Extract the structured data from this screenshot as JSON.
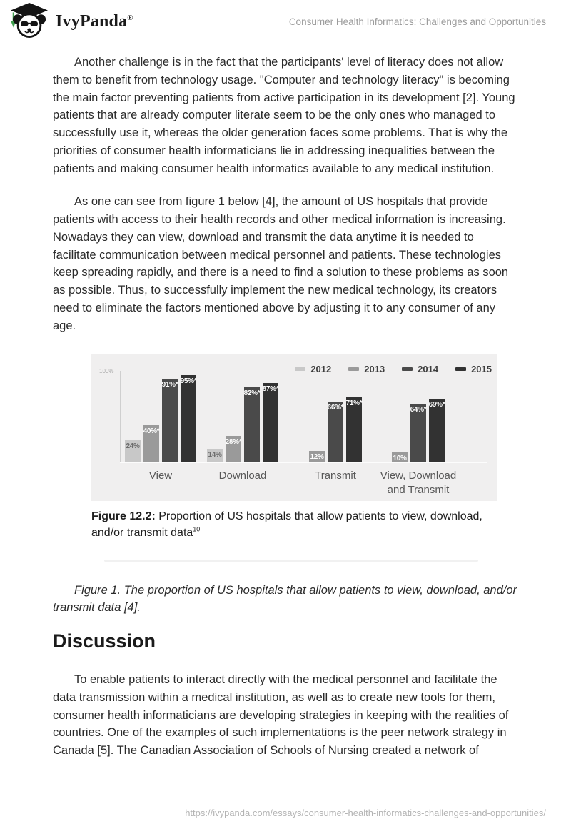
{
  "header": {
    "brand": "IvyPanda",
    "brand_registered": "®",
    "page_title": "Consumer Health Informatics: Challenges and Opportunities"
  },
  "article": {
    "paragraph_1": "Another challenge is in the fact that the participants' level of literacy does not allow them to benefit from technology usage. \"Computer and technology literacy\" is becoming the main factor preventing patients from active participation in its development [2]. Young patients that are already computer literate seem to be the only ones who managed to successfully use it, whereas the older generation faces some problems. That is why the priorities of consumer health informaticians lie in addressing inequalities between the patients and making consumer health informatics available to any medical institution.",
    "paragraph_2": "As one can see from figure 1 below [4], the amount of US hospitals that provide patients with access to their health records and other medical information is increasing. Nowadays they can view, download and transmit the data anytime it is needed to facilitate communication between medical personnel and patients. These technologies keep spreading rapidly, and there is a need to find a solution to these problems as soon as possible. Thus, to successfully implement the new medical technology, its creators need to eliminate the factors mentioned above by adjusting it to any consumer of any age.",
    "figure_caption_italic": "Figure 1. The proportion of US hospitals that allow patients to view, download, and/or transmit data [4].",
    "section_heading": "Discussion",
    "paragraph_3": "To enable patients to interact directly with the medical personnel and facilitate the data transmission within a medical institution, as well as to create new tools for them, consumer health informaticians are developing strategies in keeping with the realities of countries. One of the examples of such implementations is the peer network strategy in Canada [5]. The Canadian Association of Schools of Nursing created a network of"
  },
  "figure_image": {
    "caption_bold": "Figure 12.2:",
    "caption_text": " Proportion of US hospitals that allow patients to view, download, and/or transmit data",
    "caption_superscript": "10"
  },
  "chart_data": {
    "type": "bar",
    "title": "Figure 12.2: Proportion of US hospitals that allow patients to view, download, and/or transmit data",
    "categories": [
      "View",
      "Download",
      "Transmit",
      "View, Download\nand Transmit"
    ],
    "series": [
      {
        "name": "2012",
        "color": "#c8c8c8",
        "label_style": "dark",
        "values": [
          24,
          14,
          null,
          null
        ],
        "labels": [
          "24%",
          "14%",
          null,
          null
        ]
      },
      {
        "name": "2013",
        "color": "#9a9a9a",
        "label_style": "light",
        "values": [
          40,
          28,
          12,
          10
        ],
        "labels": [
          "40%*",
          "28%*",
          "12%",
          "10%"
        ]
      },
      {
        "name": "2014",
        "color": "#4a4a4a",
        "label_style": "light",
        "values": [
          91,
          82,
          66,
          64
        ],
        "labels": [
          "91%*",
          "82%*",
          "66%*",
          "64%*"
        ]
      },
      {
        "name": "2015",
        "color": "#323232",
        "label_style": "light",
        "values": [
          95,
          87,
          71,
          69
        ],
        "labels": [
          "95%*",
          "87%*",
          "71%*",
          "69%*"
        ]
      }
    ],
    "ylim": [
      0,
      100
    ],
    "ytick_labels": [
      "100%"
    ],
    "legend_position": "top-right",
    "grid": false,
    "background_color": "#f0efef"
  },
  "footer": {
    "url": "https://ivypanda.com/essays/consumer-health-informatics-challenges-and-opportunities/"
  }
}
